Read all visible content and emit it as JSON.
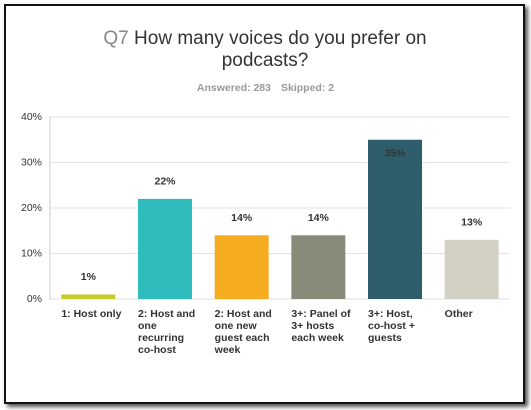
{
  "chart_data": {
    "type": "bar",
    "question_number": "Q7",
    "title": "How many voices do you prefer on podcasts?",
    "answered": "Answered: 283",
    "skipped": "Skipped: 2",
    "categories": [
      "1: Host only",
      "2: Host and one recurring co-host",
      "2: Host and one new guest each week",
      "3+: Panel of 3+ hosts each week",
      "3+: Host, co-host + guests",
      "Other"
    ],
    "values": [
      1,
      22,
      14,
      14,
      35,
      13
    ],
    "value_labels": [
      "1%",
      "22%",
      "14%",
      "14%",
      "35%",
      "13%"
    ],
    "colors": [
      "#c5cb2b",
      "#2fbcbc",
      "#f6ac1f",
      "#8a8a78",
      "#2e5e6b",
      "#d3d0c4"
    ],
    "ylim": [
      0,
      40
    ],
    "yticks": [
      {
        "value": 0,
        "label": "0%"
      },
      {
        "value": 10,
        "label": "10%"
      },
      {
        "value": 20,
        "label": "20%"
      },
      {
        "value": 30,
        "label": "30%"
      },
      {
        "value": 40,
        "label": "40%"
      }
    ],
    "grid": true
  }
}
